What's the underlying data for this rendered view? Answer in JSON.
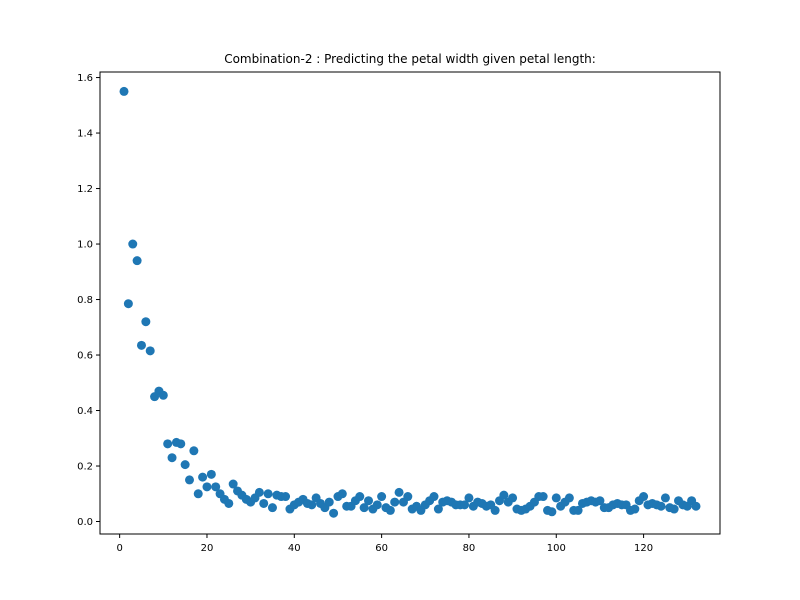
{
  "chart_data": {
    "type": "scatter",
    "title": "Combination-2 : Predicting the petal width given petal length:",
    "xlabel": "",
    "ylabel": "",
    "xlim": [
      -4.5,
      137.5
    ],
    "ylim": [
      -0.045,
      1.62
    ],
    "xticks": [
      0,
      20,
      40,
      60,
      80,
      100,
      120
    ],
    "yticks": [
      0.0,
      0.2,
      0.4,
      0.6,
      0.8,
      1.0,
      1.2,
      1.4,
      1.6
    ],
    "ytick_labels": [
      "0.0",
      "0.2",
      "0.4",
      "0.6",
      "0.8",
      "1.0",
      "1.2",
      "1.4",
      "1.6"
    ],
    "grid": false,
    "color": "#1f77b4",
    "points": [
      [
        1,
        1.55
      ],
      [
        2,
        0.785
      ],
      [
        3,
        1.0
      ],
      [
        4,
        0.94
      ],
      [
        5,
        0.635
      ],
      [
        6,
        0.72
      ],
      [
        7,
        0.615
      ],
      [
        8,
        0.45
      ],
      [
        9,
        0.47
      ],
      [
        10,
        0.455
      ],
      [
        11,
        0.28
      ],
      [
        12,
        0.23
      ],
      [
        13,
        0.285
      ],
      [
        14,
        0.28
      ],
      [
        15,
        0.205
      ],
      [
        16,
        0.15
      ],
      [
        17,
        0.255
      ],
      [
        18,
        0.1
      ],
      [
        19,
        0.16
      ],
      [
        20,
        0.125
      ],
      [
        21,
        0.17
      ],
      [
        22,
        0.125
      ],
      [
        23,
        0.1
      ],
      [
        24,
        0.08
      ],
      [
        25,
        0.065
      ],
      [
        26,
        0.135
      ],
      [
        27,
        0.11
      ],
      [
        28,
        0.095
      ],
      [
        29,
        0.08
      ],
      [
        30,
        0.07
      ],
      [
        31,
        0.085
      ],
      [
        32,
        0.105
      ],
      [
        33,
        0.065
      ],
      [
        34,
        0.1
      ],
      [
        35,
        0.05
      ],
      [
        36,
        0.095
      ],
      [
        37,
        0.09
      ],
      [
        38,
        0.09
      ],
      [
        39,
        0.045
      ],
      [
        40,
        0.06
      ],
      [
        41,
        0.07
      ],
      [
        42,
        0.08
      ],
      [
        43,
        0.065
      ],
      [
        44,
        0.06
      ],
      [
        45,
        0.085
      ],
      [
        46,
        0.065
      ],
      [
        47,
        0.05
      ],
      [
        48,
        0.07
      ],
      [
        49,
        0.03
      ],
      [
        50,
        0.09
      ],
      [
        51,
        0.1
      ],
      [
        52,
        0.055
      ],
      [
        53,
        0.055
      ],
      [
        54,
        0.075
      ],
      [
        55,
        0.09
      ],
      [
        56,
        0.05
      ],
      [
        57,
        0.075
      ],
      [
        58,
        0.045
      ],
      [
        59,
        0.06
      ],
      [
        60,
        0.09
      ],
      [
        61,
        0.05
      ],
      [
        62,
        0.04
      ],
      [
        63,
        0.07
      ],
      [
        64,
        0.105
      ],
      [
        65,
        0.07
      ],
      [
        66,
        0.09
      ],
      [
        67,
        0.045
      ],
      [
        68,
        0.055
      ],
      [
        69,
        0.04
      ],
      [
        70,
        0.06
      ],
      [
        71,
        0.075
      ],
      [
        72,
        0.09
      ],
      [
        73,
        0.045
      ],
      [
        74,
        0.07
      ],
      [
        75,
        0.075
      ],
      [
        76,
        0.07
      ],
      [
        77,
        0.06
      ],
      [
        78,
        0.06
      ],
      [
        79,
        0.06
      ],
      [
        80,
        0.085
      ],
      [
        81,
        0.055
      ],
      [
        82,
        0.07
      ],
      [
        83,
        0.065
      ],
      [
        84,
        0.055
      ],
      [
        85,
        0.06
      ],
      [
        86,
        0.04
      ],
      [
        87,
        0.075
      ],
      [
        88,
        0.095
      ],
      [
        89,
        0.07
      ],
      [
        90,
        0.085
      ],
      [
        91,
        0.045
      ],
      [
        92,
        0.04
      ],
      [
        93,
        0.045
      ],
      [
        94,
        0.055
      ],
      [
        95,
        0.07
      ],
      [
        96,
        0.09
      ],
      [
        97,
        0.09
      ],
      [
        98,
        0.04
      ],
      [
        99,
        0.035
      ],
      [
        100,
        0.085
      ],
      [
        101,
        0.055
      ],
      [
        102,
        0.07
      ],
      [
        103,
        0.085
      ],
      [
        104,
        0.04
      ],
      [
        105,
        0.04
      ],
      [
        106,
        0.065
      ],
      [
        107,
        0.07
      ],
      [
        108,
        0.075
      ],
      [
        109,
        0.07
      ],
      [
        110,
        0.075
      ],
      [
        111,
        0.05
      ],
      [
        112,
        0.05
      ],
      [
        113,
        0.06
      ],
      [
        114,
        0.065
      ],
      [
        115,
        0.06
      ],
      [
        116,
        0.06
      ],
      [
        117,
        0.04
      ],
      [
        118,
        0.045
      ],
      [
        119,
        0.075
      ],
      [
        120,
        0.09
      ],
      [
        121,
        0.06
      ],
      [
        122,
        0.065
      ],
      [
        123,
        0.06
      ],
      [
        124,
        0.055
      ],
      [
        125,
        0.085
      ],
      [
        126,
        0.05
      ],
      [
        127,
        0.045
      ],
      [
        128,
        0.075
      ],
      [
        129,
        0.06
      ],
      [
        130,
        0.055
      ],
      [
        131,
        0.075
      ],
      [
        132,
        0.055
      ]
    ]
  }
}
